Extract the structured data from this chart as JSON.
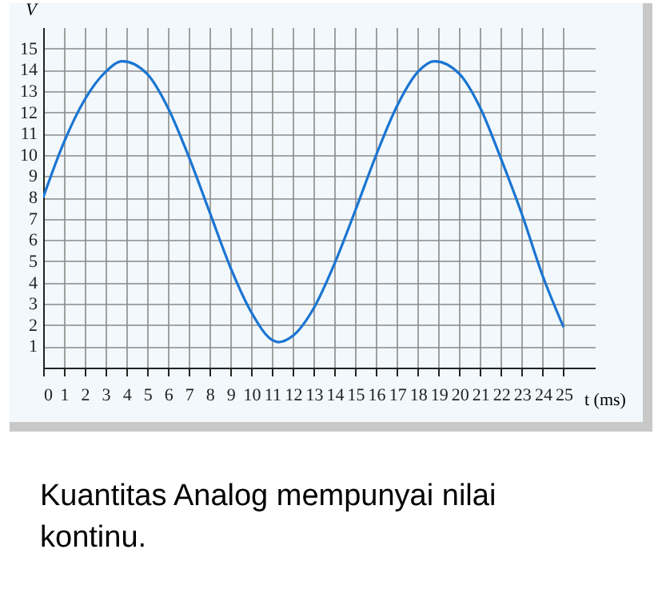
{
  "chart_data": {
    "type": "line",
    "xlabel": "t (ms)",
    "ylabel": "V",
    "x": [
      0,
      1,
      2,
      3,
      3.8,
      5,
      6,
      7,
      8,
      9,
      10,
      11,
      11.3,
      12,
      13,
      14,
      15,
      16,
      17,
      18,
      18.8,
      20,
      21,
      22,
      23,
      24,
      25
    ],
    "series": [
      {
        "color": "#1a75d2",
        "values": [
          8.0,
          10.6,
          12.6,
          13.9,
          14.4,
          13.8,
          12.2,
          9.9,
          7.3,
          4.7,
          2.6,
          1.3,
          1.2,
          1.5,
          2.8,
          4.9,
          7.4,
          10.0,
          12.3,
          13.9,
          14.4,
          13.8,
          12.2,
          9.8,
          7.2,
          4.3,
          1.9
        ]
      }
    ],
    "xlim": [
      0,
      26.5
    ],
    "ylim": [
      0,
      16
    ],
    "xticks": [
      0,
      1,
      2,
      3,
      4,
      5,
      6,
      7,
      8,
      9,
      10,
      11,
      12,
      13,
      14,
      15,
      16,
      17,
      18,
      19,
      20,
      21,
      22,
      23,
      24,
      25
    ],
    "yticks": [
      1,
      2,
      3,
      4,
      5,
      6,
      7,
      8,
      9,
      10,
      11,
      12,
      13,
      14,
      15
    ],
    "grid": true,
    "line_style": "solid",
    "marker": "none",
    "annotations": [
      "Kuantitas Analog mempunyai nilai kontinu."
    ]
  }
}
